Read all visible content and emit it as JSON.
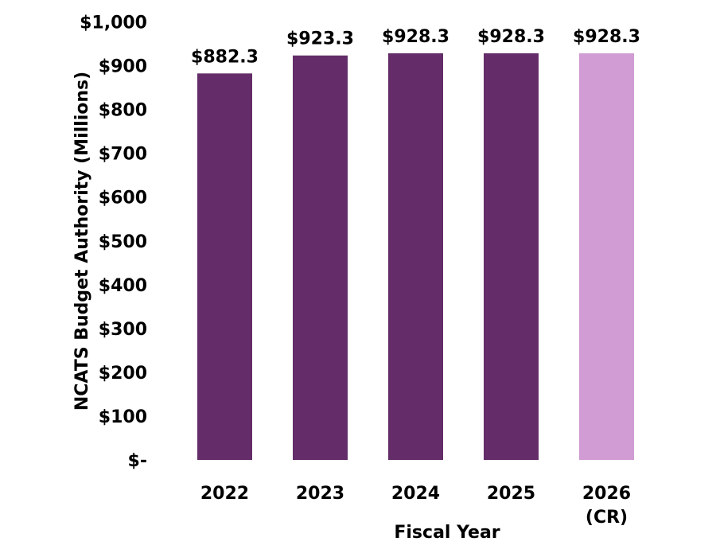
{
  "chart_data": {
    "type": "bar",
    "categories": [
      "2022",
      "2023",
      "2024",
      "2025",
      "2026\n(CR)"
    ],
    "values": [
      882.3,
      923.3,
      928.3,
      928.3,
      928.3
    ],
    "data_labels": [
      "$882.3",
      "$923.3",
      "$928.3",
      "$928.3",
      "$928.3"
    ],
    "bar_colors": [
      "#642D69",
      "#642D69",
      "#642D69",
      "#642D69",
      "#D19CD4"
    ],
    "xlabel": "Fiscal Year",
    "ylabel": "NCATS Budget Authority (Millions)",
    "ylim": [
      0,
      1000
    ],
    "yticks": [
      0,
      100,
      200,
      300,
      400,
      500,
      600,
      700,
      800,
      900,
      1000
    ],
    "ytick_labels": [
      "$-",
      "$100",
      "$200",
      "$300",
      "$400",
      "$500",
      "$600",
      "$700",
      "$800",
      "$900",
      "$1,000"
    ],
    "grid": false,
    "legend": "none"
  }
}
